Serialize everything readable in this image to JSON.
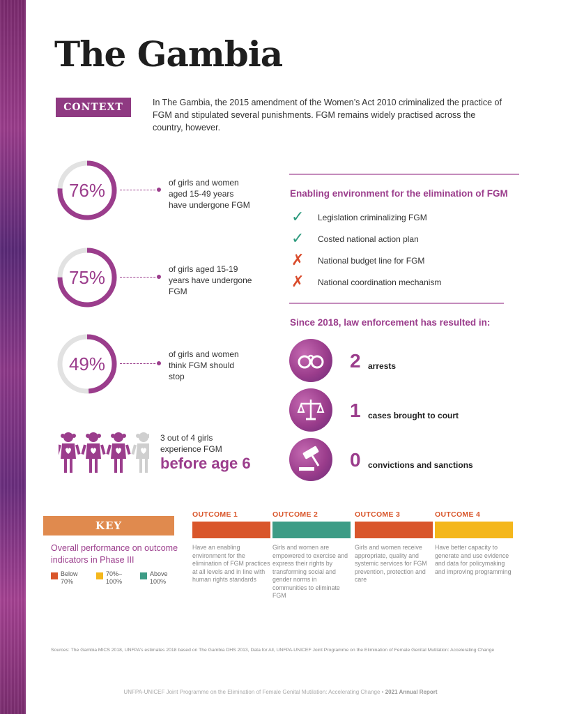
{
  "title": "The Gambia",
  "context": {
    "tag": "CONTEXT",
    "text": "In The Gambia, the 2015 amendment of the Women’s Act 2010 criminalized the practice of FGM and stipulated several punishments. FGM remains widely practised across the country, however."
  },
  "stats": [
    {
      "value": "76%",
      "percent": 76,
      "text": "of girls and women aged 15-49 years have undergone FGM"
    },
    {
      "value": "75%",
      "percent": 75,
      "text": "of girls aged 15-19 years have undergone FGM"
    },
    {
      "value": "49%",
      "percent": 49,
      "text": "of girls and women think FGM should stop"
    }
  ],
  "girls": {
    "text": "3 out of 4 girls experience FGM",
    "highlight": "before age 6",
    "filled": 3,
    "total": 4
  },
  "enabling": {
    "heading": "Enabling environment for the elimination of FGM",
    "items": [
      {
        "label": "Legislation criminalizing FGM",
        "status": "yes",
        "mark": "✓"
      },
      {
        "label": "Costed national action plan",
        "status": "yes",
        "mark": "✓"
      },
      {
        "label": "National budget line for FGM",
        "status": "no",
        "mark": "✗"
      },
      {
        "label": "National coordination mechanism",
        "status": "no",
        "mark": "✗"
      }
    ]
  },
  "enforcement": {
    "heading": "Since 2018, law enforcement has resulted in:",
    "items": [
      {
        "icon": "handcuffs-icon",
        "number": "2",
        "label": "arrests"
      },
      {
        "icon": "scales-icon",
        "number": "1",
        "label": "cases brought to court"
      },
      {
        "icon": "gavel-icon",
        "number": "0",
        "label": "convictions and sanctions"
      }
    ]
  },
  "achievements": {
    "tag": "KEY ACHIEVEMENTS",
    "performance_text": "Overall performance on outcome indicators in Phase III",
    "legend": [
      {
        "label": "Below 70%",
        "color": "#d9562b"
      },
      {
        "label": "70%–100%",
        "color": "#f4b71c"
      },
      {
        "label": "Above 100%",
        "color": "#3d9c86"
      }
    ],
    "outcomes": [
      {
        "heading": "OUTCOME 1",
        "color": "#d9562b",
        "text": "Have an enabling environment for the elimination of FGM practices at all levels and in line with human rights standards"
      },
      {
        "heading": "OUTCOME 2",
        "color": "#3d9c86",
        "text": "Girls and women are empowered to exercise and express their rights by transforming social and gender norms in communities to eliminate FGM"
      },
      {
        "heading": "OUTCOME 3",
        "color": "#d9562b",
        "text": "Girls and women receive appropriate, quality and systemic services for FGM prevention, protection and care"
      },
      {
        "heading": "OUTCOME 4",
        "color": "#f4b71c",
        "text": "Have better capacity to generate and use evidence and data for policymaking and improving programming"
      }
    ]
  },
  "sources": "Sources: The Gambia MICS 2018, UNFPA’s estimates 2018 based on The Gambia DHS 2013, Data for All, UNFPA-UNICEF Joint Programme on the Elimination of Female Genital Mutilation: Accelerating Change",
  "footer": {
    "text": "UNFPA-UNICEF Joint Programme on the Elimination of Female Genital Mutilation: Accelerating Change",
    "separator": "•",
    "report": "2021 Annual Report"
  },
  "colors": {
    "accent": "#9b3d8c",
    "ring_bg": "#e2e2e2",
    "girl_filled": "#9b3d8c",
    "girl_empty": "#cfcfcf"
  }
}
